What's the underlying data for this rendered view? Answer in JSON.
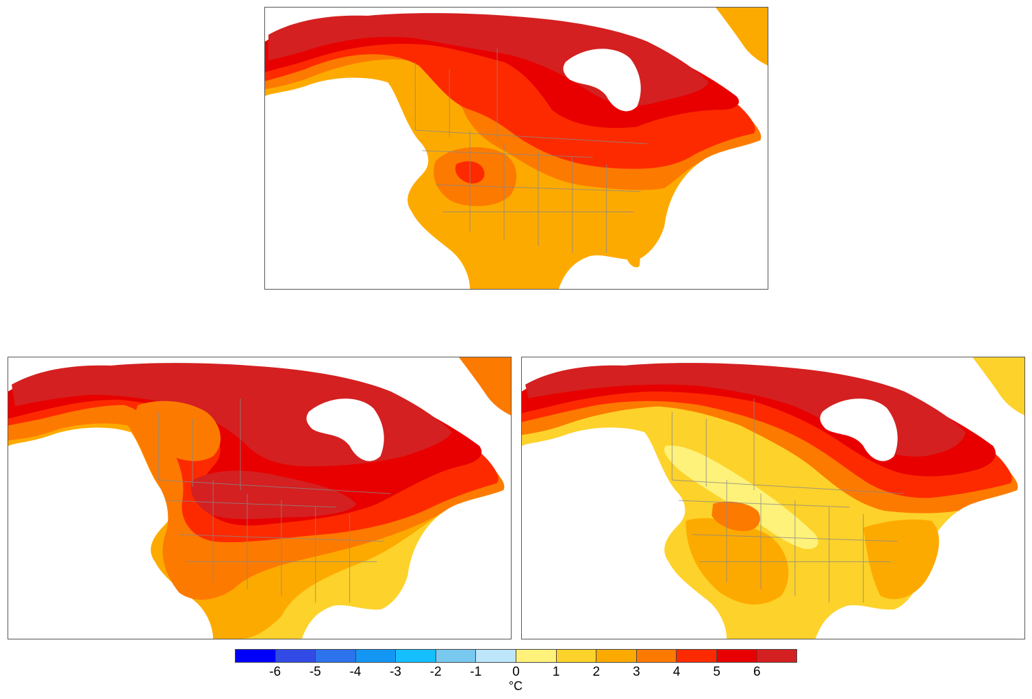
{
  "maps": [
    {
      "id": "top",
      "colors": {
        "c1": "#fff27a",
        "c2": "#fdd22a",
        "c3": "#fdaa00",
        "c4": "#fd7a00",
        "c5": "#fd2a00",
        "c6": "#e80000",
        "c7": "#d42020"
      }
    },
    {
      "id": "left",
      "colors": {
        "c1": "#fff27a",
        "c2": "#fdd22a",
        "c3": "#fdaa00",
        "c4": "#fd7a00",
        "c5": "#fd2a00",
        "c6": "#e80000",
        "c7": "#d42020"
      }
    },
    {
      "id": "right",
      "colors": {
        "c1": "#fff27a",
        "c2": "#fdd22a",
        "c3": "#fdaa00",
        "c4": "#fd7a00",
        "c5": "#fd2a00",
        "c6": "#e80000",
        "c7": "#d42020"
      }
    }
  ],
  "colorbar": {
    "colors": [
      "#0000fa",
      "#324be6",
      "#2d73ec",
      "#1496f5",
      "#14beff",
      "#78c8f0",
      "#bee6fa",
      "#fff27a",
      "#fdd22a",
      "#fdaa00",
      "#fd7a00",
      "#fd2a00",
      "#e80000",
      "#d42020"
    ],
    "ticks": [
      "-6",
      "-5",
      "-4",
      "-3",
      "-2",
      "-1",
      "0",
      "1",
      "2",
      "3",
      "4",
      "5",
      "6"
    ],
    "unit": "°C"
  },
  "boundary_color": "#888888",
  "ocean_color": "#ffffff"
}
